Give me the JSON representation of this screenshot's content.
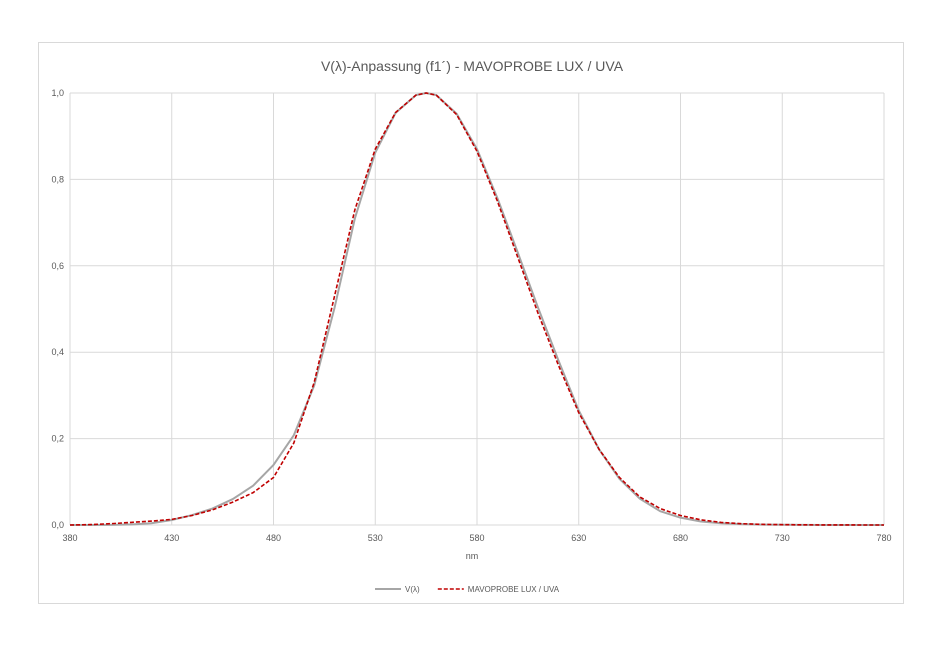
{
  "chart_data": {
    "type": "line",
    "title": "V(λ)-Anpassung (f1´) - MAVOPROBE LUX / UVA",
    "xlabel": "nm",
    "ylabel": "",
    "xlim": [
      380,
      780
    ],
    "ylim": [
      0,
      1.0
    ],
    "x_ticks": [
      "380",
      "430",
      "480",
      "530",
      "580",
      "630",
      "680",
      "730",
      "780"
    ],
    "y_ticks": [
      "0,0",
      "0,2",
      "0,4",
      "0,6",
      "0,8",
      "1,0"
    ],
    "grid": true,
    "legend_position": "bottom",
    "series": [
      {
        "name": "V(λ)",
        "color": "#a6a6a6",
        "style": "solid",
        "x": [
          380,
          390,
          400,
          410,
          420,
          430,
          440,
          450,
          460,
          470,
          480,
          490,
          500,
          510,
          520,
          530,
          540,
          550,
          555,
          560,
          570,
          580,
          590,
          600,
          610,
          620,
          630,
          640,
          650,
          660,
          670,
          680,
          690,
          700,
          710,
          720,
          730,
          740,
          750,
          760,
          770,
          780
        ],
        "y": [
          0.0,
          0.0001,
          0.0004,
          0.0012,
          0.004,
          0.0116,
          0.023,
          0.038,
          0.06,
          0.091,
          0.139,
          0.208,
          0.323,
          0.503,
          0.71,
          0.862,
          0.954,
          0.995,
          1.0,
          0.995,
          0.952,
          0.87,
          0.757,
          0.631,
          0.503,
          0.381,
          0.265,
          0.175,
          0.107,
          0.061,
          0.032,
          0.017,
          0.0082,
          0.0041,
          0.0021,
          0.001,
          0.0005,
          0.0002,
          0.0001,
          0.0001,
          0.0,
          0.0
        ]
      },
      {
        "name": "MAVOPROBE LUX / UVA",
        "color": "#c00000",
        "style": "dashed",
        "x": [
          380,
          390,
          400,
          410,
          420,
          430,
          440,
          450,
          460,
          470,
          480,
          490,
          500,
          510,
          520,
          530,
          540,
          550,
          555,
          560,
          570,
          580,
          590,
          600,
          610,
          620,
          630,
          640,
          650,
          660,
          670,
          680,
          690,
          700,
          710,
          720,
          730,
          740,
          750,
          760,
          770,
          780
        ],
        "y": [
          0.0,
          0.001,
          0.003,
          0.006,
          0.009,
          0.013,
          0.022,
          0.035,
          0.053,
          0.075,
          0.11,
          0.19,
          0.33,
          0.53,
          0.73,
          0.87,
          0.955,
          0.995,
          1.0,
          0.995,
          0.95,
          0.865,
          0.75,
          0.62,
          0.49,
          0.37,
          0.26,
          0.175,
          0.11,
          0.065,
          0.038,
          0.022,
          0.012,
          0.006,
          0.003,
          0.0015,
          0.0008,
          0.0004,
          0.0002,
          0.0001,
          0.0,
          0.0
        ]
      }
    ]
  }
}
